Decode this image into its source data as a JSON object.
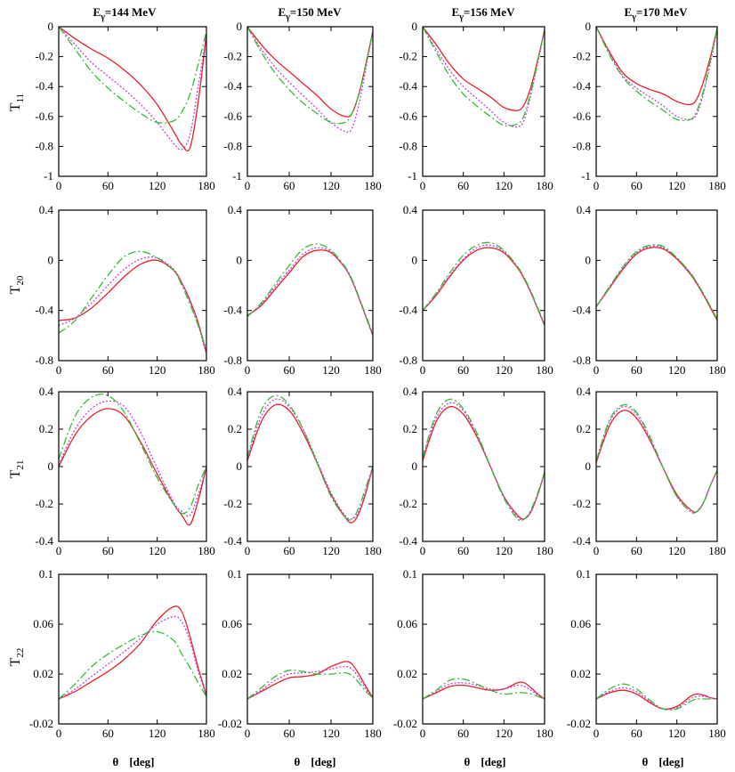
{
  "chart_data": {
    "type": "line",
    "layout": "4x4 grid of panels",
    "columns": [
      "E_γ=144 MeV",
      "E_γ=150 MeV",
      "E_γ=156 MeV",
      "E_γ=170 MeV"
    ],
    "column_parts": [
      {
        "main": "E",
        "sub": "γ",
        "rest": "=144 MeV"
      },
      {
        "main": "E",
        "sub": "γ",
        "rest": "=150 MeV"
      },
      {
        "main": "E",
        "sub": "γ",
        "rest": "=156 MeV"
      },
      {
        "main": "E",
        "sub": "γ",
        "rest": "=170 MeV"
      }
    ],
    "rows": [
      {
        "label": "T",
        "sub": "11",
        "ylim": [
          -1,
          0
        ],
        "yticks": [
          0,
          -0.2,
          -0.4,
          -0.6,
          -0.8,
          -1
        ],
        "ytick_labels": [
          "0",
          "-0.2",
          "-0.4",
          "-0.6",
          "-0.8",
          "-1"
        ]
      },
      {
        "label": "T",
        "sub": "20",
        "ylim": [
          -0.8,
          0.4
        ],
        "yticks": [
          0.4,
          0,
          -0.4,
          -0.8
        ],
        "ytick_labels": [
          "0.4",
          "0",
          "-0.4",
          "-0.8"
        ]
      },
      {
        "label": "T",
        "sub": "21",
        "ylim": [
          -0.4,
          0.4
        ],
        "yticks": [
          0.4,
          0.2,
          0,
          -0.2,
          -0.4
        ],
        "ytick_labels": [
          "0.4",
          "0.2",
          "0",
          "-0.2",
          "-0.4"
        ]
      },
      {
        "label": "T",
        "sub": "22",
        "ylim": [
          -0.02,
          0.1
        ],
        "yticks": [
          0.1,
          0.06,
          0.02,
          -0.02
        ],
        "ytick_labels": [
          "0.1",
          "0.06",
          "0.02",
          "-0.02"
        ]
      }
    ],
    "xlim": [
      0,
      180
    ],
    "xticks": [
      0,
      60,
      120,
      180
    ],
    "xtick_labels": [
      "0",
      "60",
      "120",
      "180"
    ],
    "xlabel_symbol": "θ",
    "xlabel_unit": "[deg]",
    "x": [
      0,
      20,
      40,
      60,
      80,
      100,
      120,
      140,
      150,
      160,
      170,
      180
    ],
    "series_styles": [
      {
        "name": "solid",
        "color": "#e8202a",
        "dash": ""
      },
      {
        "name": "dotted",
        "color": "#c640e0",
        "dash": "2,2"
      },
      {
        "name": "dashed",
        "color": "#2fbf2f",
        "dash": "9,3,2,3"
      }
    ],
    "panels": [
      [
        {
          "series": [
            [
              0,
              -0.08,
              -0.15,
              -0.21,
              -0.29,
              -0.39,
              -0.52,
              -0.7,
              -0.79,
              -0.81,
              -0.5,
              -0.05
            ],
            [
              0,
              -0.12,
              -0.24,
              -0.33,
              -0.42,
              -0.52,
              -0.64,
              -0.78,
              -0.82,
              -0.72,
              -0.4,
              -0.05
            ],
            [
              0,
              -0.15,
              -0.3,
              -0.41,
              -0.5,
              -0.58,
              -0.64,
              -0.63,
              -0.57,
              -0.45,
              -0.25,
              -0.03
            ]
          ]
        },
        {
          "series": [
            [
              0,
              -0.12,
              -0.22,
              -0.3,
              -0.38,
              -0.46,
              -0.55,
              -0.6,
              -0.58,
              -0.45,
              -0.25,
              -0.03
            ],
            [
              0,
              -0.15,
              -0.27,
              -0.37,
              -0.46,
              -0.55,
              -0.64,
              -0.7,
              -0.68,
              -0.52,
              -0.28,
              -0.03
            ],
            [
              0,
              -0.17,
              -0.31,
              -0.42,
              -0.51,
              -0.58,
              -0.64,
              -0.64,
              -0.58,
              -0.45,
              -0.25,
              -0.03
            ]
          ]
        },
        {
          "series": [
            [
              0,
              -0.12,
              -0.25,
              -0.35,
              -0.41,
              -0.47,
              -0.54,
              -0.56,
              -0.52,
              -0.4,
              -0.22,
              -0.02
            ],
            [
              0,
              -0.15,
              -0.29,
              -0.4,
              -0.48,
              -0.56,
              -0.64,
              -0.67,
              -0.62,
              -0.45,
              -0.24,
              -0.02
            ],
            [
              0,
              -0.17,
              -0.33,
              -0.45,
              -0.53,
              -0.6,
              -0.66,
              -0.65,
              -0.59,
              -0.43,
              -0.23,
              -0.02
            ]
          ]
        },
        {
          "series": [
            [
              0,
              -0.17,
              -0.31,
              -0.38,
              -0.42,
              -0.45,
              -0.5,
              -0.52,
              -0.48,
              -0.36,
              -0.2,
              -0.01
            ],
            [
              0,
              -0.18,
              -0.33,
              -0.41,
              -0.47,
              -0.53,
              -0.6,
              -0.62,
              -0.58,
              -0.44,
              -0.24,
              -0.02
            ],
            [
              0,
              -0.19,
              -0.34,
              -0.43,
              -0.5,
              -0.56,
              -0.62,
              -0.62,
              -0.56,
              -0.42,
              -0.22,
              -0.01
            ]
          ]
        }
      ],
      [
        {
          "series": [
            [
              -0.48,
              -0.46,
              -0.38,
              -0.26,
              -0.13,
              -0.03,
              0.0,
              -0.08,
              -0.18,
              -0.32,
              -0.5,
              -0.74
            ],
            [
              -0.52,
              -0.46,
              -0.34,
              -0.2,
              -0.07,
              0.01,
              0.02,
              -0.07,
              -0.18,
              -0.33,
              -0.52,
              -0.75
            ],
            [
              -0.58,
              -0.48,
              -0.3,
              -0.12,
              0.03,
              0.07,
              0.02,
              -0.08,
              -0.2,
              -0.35,
              -0.52,
              -0.71
            ]
          ]
        },
        {
          "series": [
            [
              -0.44,
              -0.36,
              -0.23,
              -0.1,
              0.03,
              0.08,
              0.06,
              -0.06,
              -0.16,
              -0.3,
              -0.45,
              -0.6
            ],
            [
              -0.44,
              -0.35,
              -0.21,
              -0.08,
              0.05,
              0.1,
              0.07,
              -0.06,
              -0.16,
              -0.3,
              -0.45,
              -0.6
            ],
            [
              -0.45,
              -0.34,
              -0.19,
              -0.04,
              0.09,
              0.13,
              0.08,
              -0.05,
              -0.15,
              -0.29,
              -0.44,
              -0.59
            ]
          ]
        },
        {
          "series": [
            [
              -0.4,
              -0.28,
              -0.13,
              0.0,
              0.08,
              0.1,
              0.06,
              -0.06,
              -0.15,
              -0.26,
              -0.39,
              -0.52
            ],
            [
              -0.4,
              -0.27,
              -0.12,
              0.01,
              0.1,
              0.12,
              0.07,
              -0.05,
              -0.14,
              -0.26,
              -0.39,
              -0.52
            ],
            [
              -0.4,
              -0.26,
              -0.1,
              0.04,
              0.12,
              0.14,
              0.08,
              -0.05,
              -0.14,
              -0.25,
              -0.38,
              -0.51
            ]
          ]
        },
        {
          "series": [
            [
              -0.37,
              -0.22,
              -0.07,
              0.05,
              0.1,
              0.09,
              0.01,
              -0.11,
              -0.19,
              -0.28,
              -0.38,
              -0.48
            ],
            [
              -0.37,
              -0.21,
              -0.06,
              0.06,
              0.11,
              0.1,
              0.02,
              -0.1,
              -0.18,
              -0.27,
              -0.37,
              -0.47
            ],
            [
              -0.37,
              -0.21,
              -0.05,
              0.07,
              0.12,
              0.11,
              0.02,
              -0.1,
              -0.18,
              -0.27,
              -0.37,
              -0.47
            ]
          ]
        }
      ],
      [
        {
          "series": [
            [
              0.0,
              0.17,
              0.27,
              0.31,
              0.27,
              0.13,
              -0.04,
              -0.2,
              -0.26,
              -0.31,
              -0.18,
              0.0
            ],
            [
              0.01,
              0.2,
              0.31,
              0.35,
              0.32,
              0.18,
              -0.01,
              -0.19,
              -0.24,
              -0.26,
              -0.15,
              0.0
            ],
            [
              0.04,
              0.27,
              0.37,
              0.38,
              0.29,
              0.12,
              -0.06,
              -0.2,
              -0.25,
              -0.22,
              -0.1,
              0.0
            ]
          ]
        },
        {
          "series": [
            [
              0.03,
              0.24,
              0.33,
              0.3,
              0.18,
              0.02,
              -0.15,
              -0.27,
              -0.3,
              -0.25,
              -0.14,
              0.0
            ],
            [
              0.04,
              0.27,
              0.36,
              0.32,
              0.2,
              0.03,
              -0.14,
              -0.26,
              -0.28,
              -0.24,
              -0.13,
              0.0
            ],
            [
              0.05,
              0.3,
              0.38,
              0.33,
              0.2,
              0.02,
              -0.16,
              -0.27,
              -0.28,
              -0.22,
              -0.11,
              0.0
            ]
          ]
        },
        {
          "series": [
            [
              0.03,
              0.24,
              0.32,
              0.28,
              0.16,
              0.0,
              -0.16,
              -0.26,
              -0.28,
              -0.24,
              -0.15,
              -0.03
            ],
            [
              0.04,
              0.26,
              0.34,
              0.3,
              0.17,
              0.0,
              -0.16,
              -0.27,
              -0.28,
              -0.24,
              -0.15,
              -0.03
            ],
            [
              0.05,
              0.28,
              0.36,
              0.31,
              0.18,
              0.0,
              -0.17,
              -0.28,
              -0.28,
              -0.23,
              -0.14,
              -0.03
            ]
          ]
        },
        {
          "series": [
            [
              0.02,
              0.22,
              0.3,
              0.26,
              0.14,
              -0.01,
              -0.15,
              -0.23,
              -0.24,
              -0.19,
              -0.1,
              -0.02
            ],
            [
              0.03,
              0.24,
              0.32,
              0.28,
              0.15,
              -0.01,
              -0.16,
              -0.24,
              -0.24,
              -0.19,
              -0.1,
              -0.02
            ],
            [
              0.03,
              0.25,
              0.33,
              0.29,
              0.16,
              -0.01,
              -0.16,
              -0.24,
              -0.24,
              -0.19,
              -0.1,
              -0.02
            ]
          ]
        }
      ],
      [
        {
          "series": [
            [
              0.0,
              0.006,
              0.014,
              0.022,
              0.032,
              0.045,
              0.063,
              0.074,
              0.07,
              0.05,
              0.025,
              0.003
            ],
            [
              0.0,
              0.008,
              0.018,
              0.028,
              0.038,
              0.049,
              0.06,
              0.066,
              0.062,
              0.046,
              0.022,
              0.003
            ],
            [
              0.0,
              0.012,
              0.026,
              0.036,
              0.044,
              0.051,
              0.054,
              0.047,
              0.036,
              0.025,
              0.013,
              0.002
            ]
          ]
        },
        {
          "series": [
            [
              0.0,
              0.006,
              0.012,
              0.017,
              0.018,
              0.02,
              0.026,
              0.03,
              0.028,
              0.02,
              0.01,
              0.001
            ],
            [
              0.0,
              0.007,
              0.015,
              0.02,
              0.021,
              0.022,
              0.024,
              0.026,
              0.024,
              0.017,
              0.008,
              0.001
            ],
            [
              0.0,
              0.009,
              0.018,
              0.023,
              0.022,
              0.02,
              0.02,
              0.021,
              0.019,
              0.013,
              0.006,
              0.001
            ]
          ]
        },
        {
          "series": [
            [
              0.0,
              0.005,
              0.01,
              0.011,
              0.009,
              0.007,
              0.008,
              0.013,
              0.013,
              0.009,
              0.004,
              0.0
            ],
            [
              0.0,
              0.006,
              0.012,
              0.013,
              0.011,
              0.008,
              0.008,
              0.011,
              0.01,
              0.007,
              0.003,
              0.0
            ],
            [
              0.0,
              0.007,
              0.015,
              0.016,
              0.012,
              0.007,
              0.004,
              0.005,
              0.005,
              0.004,
              0.002,
              0.0
            ]
          ]
        },
        {
          "series": [
            [
              0.0,
              0.005,
              0.007,
              0.004,
              -0.003,
              -0.008,
              -0.006,
              0.002,
              0.004,
              0.003,
              0.001,
              0.0
            ],
            [
              0.0,
              0.006,
              0.009,
              0.006,
              -0.002,
              -0.008,
              -0.007,
              0.0,
              0.002,
              0.002,
              0.001,
              0.0
            ],
            [
              0.0,
              0.008,
              0.012,
              0.008,
              -0.001,
              -0.008,
              -0.008,
              -0.002,
              0.0,
              0.0,
              0.0,
              0.0
            ]
          ]
        }
      ]
    ]
  }
}
